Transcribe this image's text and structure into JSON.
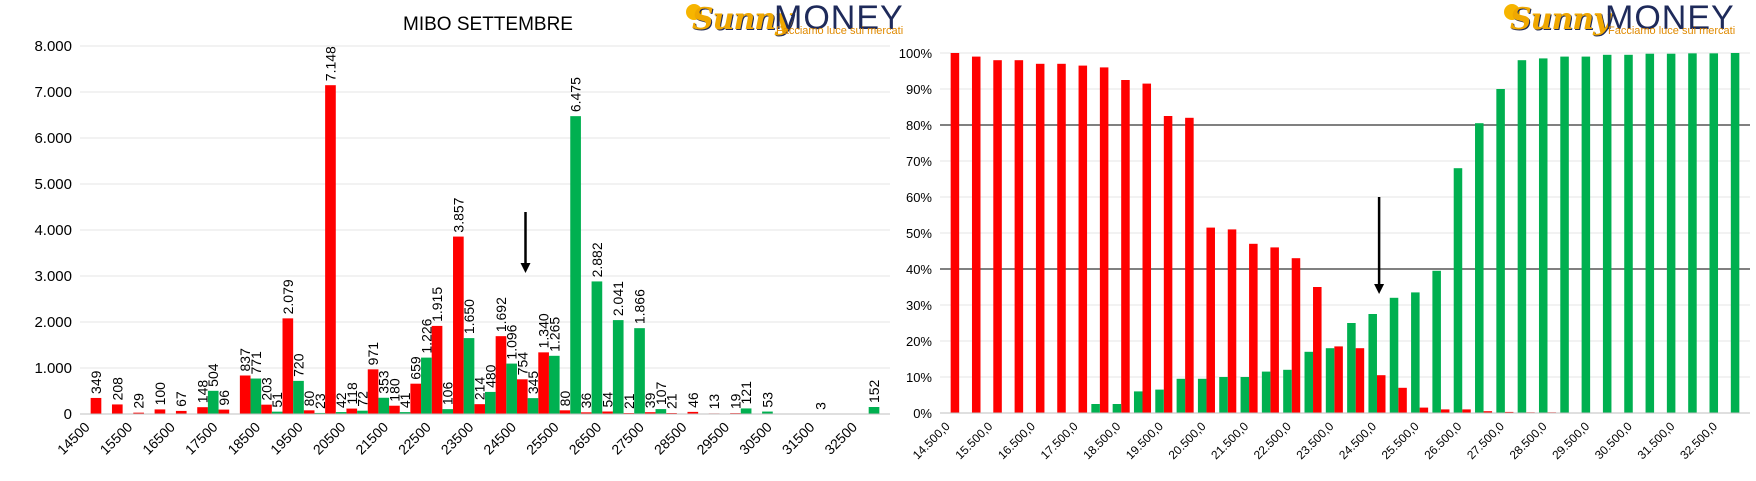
{
  "brand": {
    "name_part1": "Sunny",
    "name_part2": "MONEY",
    "tagline": "Facciamo luce sui mercati"
  },
  "colors": {
    "puts": "#ff0000",
    "calls": "#00b050",
    "grid": "#e6e6e6",
    "axis": "#000000"
  },
  "chart_data": [
    {
      "type": "bar",
      "title": "MIBO SETTEMBRE",
      "x": [
        14500,
        15000,
        15500,
        16000,
        16500,
        17000,
        17500,
        18000,
        18500,
        19000,
        19500,
        20000,
        20500,
        21000,
        21500,
        22000,
        22500,
        23000,
        23500,
        24000,
        24500,
        25000,
        25500,
        26000,
        26500,
        27000,
        27500,
        28000,
        28500,
        29000,
        29500,
        30000,
        30500,
        31000,
        31500,
        32000,
        32500,
        33000
      ],
      "x_tick_labels": [
        "14500",
        "15500",
        "16500",
        "17500",
        "18500",
        "19500",
        "20500",
        "21500",
        "22500",
        "23500",
        "24500",
        "25500",
        "26500",
        "27500",
        "28500",
        "29500",
        "30500",
        "31500",
        "32500"
      ],
      "y_tick_labels": [
        "0",
        "1.000",
        "2.000",
        "3.000",
        "4.000",
        "5.000",
        "6.000",
        "7.000",
        "8.000"
      ],
      "ylim": [
        0,
        8000
      ],
      "series": [
        {
          "color": "#ff0000",
          "values": [
            349,
            208,
            29,
            100,
            67,
            148,
            96,
            837,
            203,
            2079,
            80,
            7148,
            118,
            971,
            180,
            659,
            1915,
            3857,
            214,
            1692,
            754,
            1340,
            80,
            36,
            54,
            21,
            39,
            21,
            46,
            13,
            19,
            0,
            0,
            0,
            3,
            0,
            0,
            0
          ],
          "labels": [
            "349",
            "208",
            "29",
            "100",
            "67",
            "148",
            "96",
            "837",
            "203",
            "2.079",
            "80",
            "7.148",
            "118",
            "971",
            "180",
            "659",
            "1.915",
            "3.857",
            "214",
            "1.692",
            "754",
            "1.340",
            "80",
            "36",
            "54",
            "21",
            "39",
            "21",
            "46",
            "13",
            "19",
            "",
            "",
            "",
            "3",
            "",
            "",
            ""
          ]
        },
        {
          "color": "#00b050",
          "values": [
            0,
            0,
            0,
            0,
            0,
            0,
            504,
            0,
            771,
            51,
            720,
            23,
            42,
            72,
            353,
            41,
            1226,
            106,
            1650,
            480,
            1096,
            345,
            1265,
            6475,
            2882,
            2041,
            1866,
            107,
            0,
            0,
            0,
            121,
            53,
            0,
            0,
            0,
            0,
            152
          ],
          "labels": [
            "",
            "",
            "",
            "",
            "",
            "",
            "504",
            "",
            "771",
            "51",
            "720",
            "23",
            "42",
            "72",
            "353",
            "41",
            "1.226",
            "106",
            "1.650",
            "480",
            "1.096",
            "345",
            "1.265",
            "6.475",
            "2.882",
            "2.041",
            "1.866",
            "107",
            "",
            "",
            "",
            "121",
            "53",
            "",
            "",
            "",
            "",
            "152"
          ]
        }
      ]
    },
    {
      "type": "bar",
      "title": "",
      "x": [
        14500,
        15000,
        15500,
        16000,
        16500,
        17000,
        17500,
        18000,
        18500,
        19000,
        19500,
        20000,
        20500,
        21000,
        21500,
        22000,
        22500,
        23000,
        23500,
        24000,
        24500,
        25000,
        25500,
        26000,
        26500,
        27000,
        27500,
        28000,
        28500,
        29000,
        29500,
        30000,
        30500,
        31000,
        31500,
        32000,
        32500,
        33000
      ],
      "x_tick_labels": [
        "14.500,0",
        "15.500,0",
        "16.500,0",
        "17.500,0",
        "18.500,0",
        "19.500,0",
        "20.500,0",
        "21.500,0",
        "22.500,0",
        "23.500,0",
        "24.500,0",
        "25.500,0",
        "26.500,0",
        "27.500,0",
        "28.500,0",
        "29.500,0",
        "30.500,0",
        "31.500,0",
        "32.500,0"
      ],
      "y_tick_labels": [
        "0%",
        "10%",
        "20%",
        "30%",
        "40%",
        "50%",
        "60%",
        "70%",
        "80%",
        "90%",
        "100%"
      ],
      "ylim": [
        0,
        100
      ],
      "series": [
        {
          "color": "#ff0000",
          "values": [
            100,
            99,
            98,
            98,
            97,
            97,
            96.5,
            96,
            92.5,
            91.5,
            82.5,
            82,
            51.5,
            51,
            47,
            46,
            43,
            35,
            18.5,
            18,
            10.5,
            7,
            1.5,
            1,
            1,
            0.5,
            0.3,
            0.2,
            0.2,
            0.1,
            0,
            0,
            0,
            0,
            0,
            0,
            0,
            0
          ]
        },
        {
          "color": "#00b050",
          "values": [
            0,
            0,
            0,
            0,
            0,
            0,
            0,
            2.5,
            2.5,
            6,
            6.5,
            9.5,
            9.5,
            10,
            10,
            11.5,
            12,
            17,
            18,
            25,
            27.5,
            32,
            33.5,
            39.5,
            68,
            80.5,
            90,
            98,
            98.5,
            99,
            99,
            99.5,
            99.5,
            99.8,
            99.8,
            99.9,
            99.9,
            100
          ]
        }
      ]
    }
  ]
}
